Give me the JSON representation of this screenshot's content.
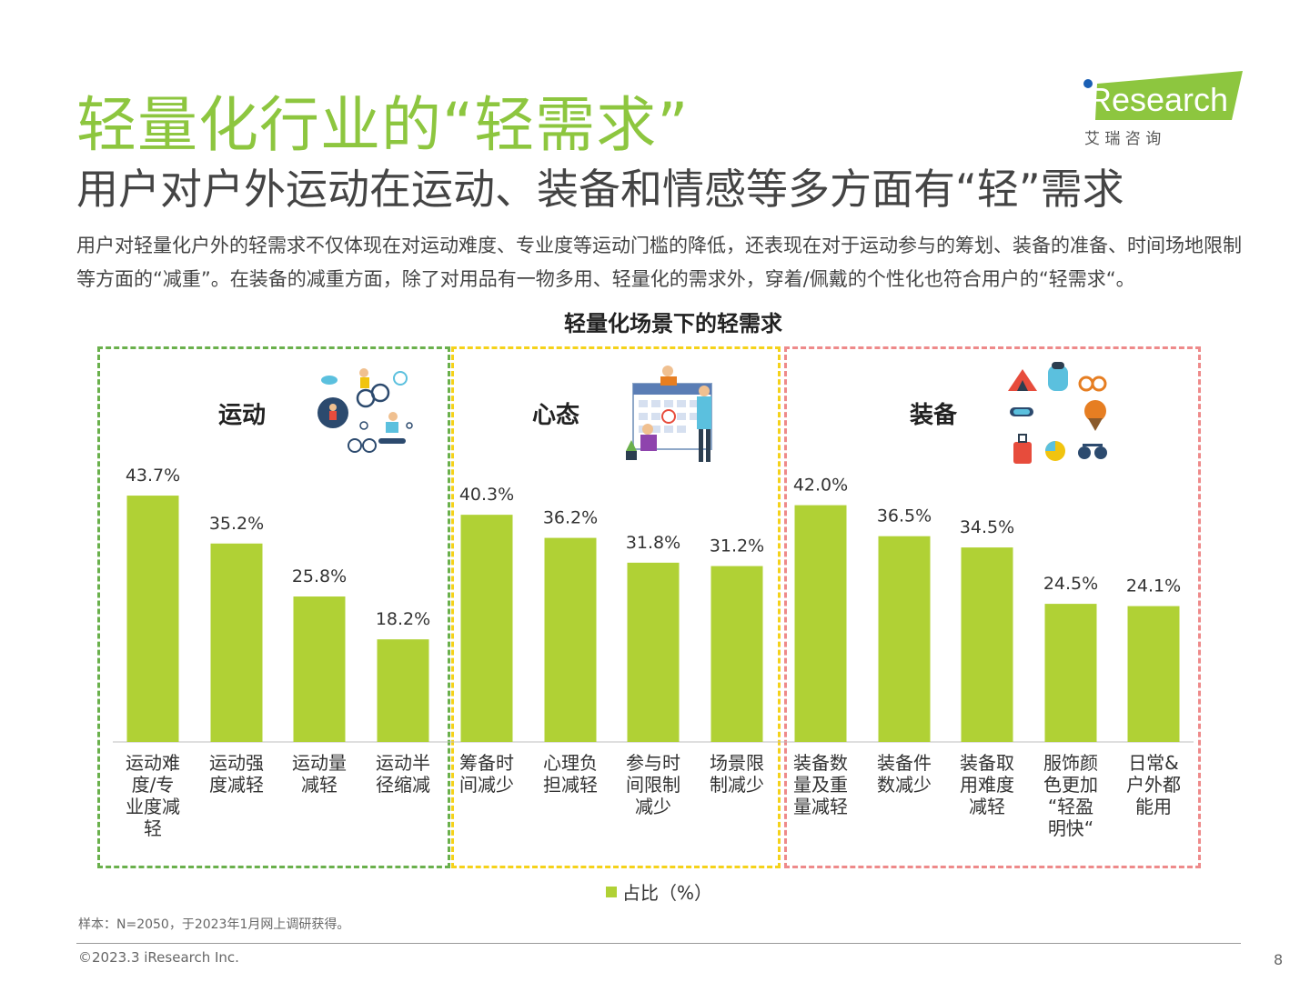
{
  "header": {
    "title": "轻量化行业的“轻需求”",
    "subtitle": "用户对户外运动在运动、装备和情感等多方面有“轻”需求",
    "description": "用户对轻量化户外的轻需求不仅体现在对运动难度、专业度等运动门槛的降低，还表现在对于运动参与的筹划、装备的准备、时间场地限制等方面的“减重”。在装备的减重方面，除了对用品有一物多用、轻量化的需求外，穿着/佩戴的个性化也符合用户的“轻需求“。"
  },
  "logo": {
    "brand": "iResearch",
    "cn": "艾 瑞 咨 询",
    "color": "#8dc63f"
  },
  "colors": {
    "bar": "#b0d135",
    "group_sport": "#6ab04c",
    "group_mind": "#f5d21a",
    "group_gear": "#ee8a8a",
    "title_green": "#8dc63f"
  },
  "chart_data": {
    "type": "bar",
    "title": "轻量化场景下的轻需求",
    "groups": [
      {
        "name": "运动",
        "categories": [
          "运动难度/专业度减轻",
          "运动强度减轻",
          "运动量减轻",
          "运动半径缩减"
        ],
        "values": [
          43.7,
          35.2,
          25.8,
          18.2
        ]
      },
      {
        "name": "心态",
        "categories": [
          "筹备时间减少",
          "心理负担减轻",
          "参与时间限制减少",
          "场景限制减少"
        ],
        "values": [
          40.3,
          36.2,
          31.8,
          31.2
        ]
      },
      {
        "name": "装备",
        "categories": [
          "装备数量及重量减轻",
          "装备件数减少",
          "装备取用难度减轻",
          "服饰颜色更加“轻盈明快“",
          "日常&户外都能用"
        ],
        "values": [
          42.0,
          36.5,
          34.5,
          24.5,
          24.1
        ]
      }
    ],
    "categories": [
      "运动难度/专业度减轻",
      "运动强度减轻",
      "运动量减轻",
      "运动半径缩减",
      "筹备时间减少",
      "心理负担减轻",
      "参与时间限制减少",
      "场景限制减少",
      "装备数量及重量减轻",
      "装备件数减少",
      "装备取用难度减轻",
      "服饰颜色更加“轻盈明快“",
      "日常&户外都能用"
    ],
    "series": [
      {
        "name": "占比（%）",
        "values": [
          43.7,
          35.2,
          25.8,
          18.2,
          40.3,
          36.2,
          31.8,
          31.2,
          42.0,
          36.5,
          34.5,
          24.5,
          24.1
        ]
      }
    ],
    "tick_labels": [
      [
        "运动难",
        "度/专",
        "业度减",
        "轻"
      ],
      [
        "运动强",
        "度减轻"
      ],
      [
        "运动量",
        "减轻"
      ],
      [
        "运动半",
        "径缩减"
      ],
      [
        "筹备时",
        "间减少"
      ],
      [
        "心理负",
        "担减轻"
      ],
      [
        "参与时",
        "间限制",
        "减少"
      ],
      [
        "场景限",
        "制减少"
      ],
      [
        "装备数",
        "量及重",
        "量减轻"
      ],
      [
        "装备件",
        "数减少"
      ],
      [
        "装备取",
        "用难度",
        "减轻"
      ],
      [
        "服饰颜",
        "色更加",
        "“轻盈",
        "明快“"
      ],
      [
        "日常&",
        "户外都",
        "能用"
      ]
    ],
    "value_labels": [
      "43.7%",
      "35.2%",
      "25.8%",
      "18.2%",
      "40.3%",
      "36.2%",
      "31.8%",
      "31.2%",
      "42.0%",
      "36.5%",
      "34.5%",
      "24.5%",
      "24.1%"
    ],
    "ylim": [
      0,
      50
    ],
    "grid": false,
    "legend_position": "bottom",
    "legend_label": "占比（%）"
  },
  "footer": {
    "note": "样本：N=2050，于2023年1月网上调研获得。",
    "copyright": "©2023.3 iResearch Inc.",
    "page": "8"
  }
}
